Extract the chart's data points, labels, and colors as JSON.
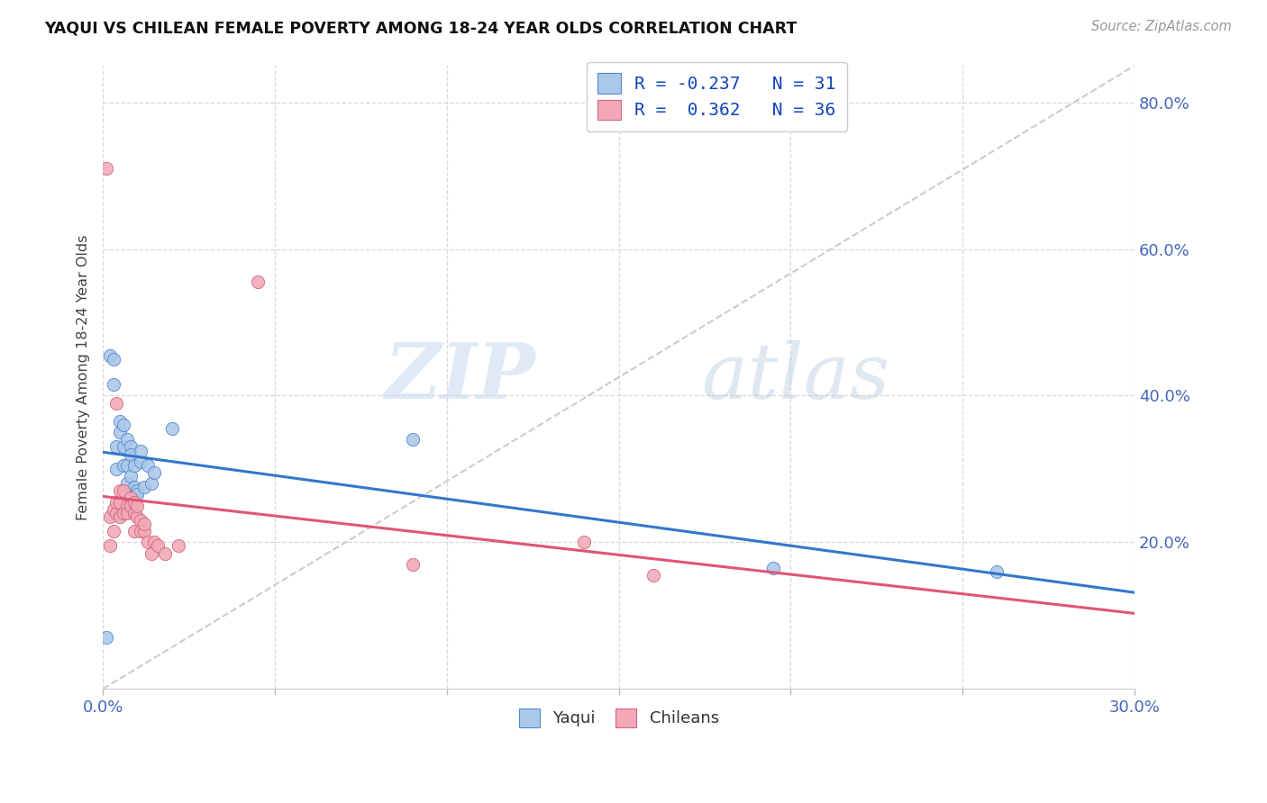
{
  "title": "YAQUI VS CHILEAN FEMALE POVERTY AMONG 18-24 YEAR OLDS CORRELATION CHART",
  "source": "Source: ZipAtlas.com",
  "ylabel": "Female Poverty Among 18-24 Year Olds",
  "xlim": [
    0.0,
    0.3
  ],
  "ylim": [
    0.0,
    0.85
  ],
  "xticks": [
    0.0,
    0.05,
    0.1,
    0.15,
    0.2,
    0.25,
    0.3
  ],
  "yticks_right": [
    0.2,
    0.4,
    0.6,
    0.8
  ],
  "ytick_right_labels": [
    "20.0%",
    "40.0%",
    "60.0%",
    "80.0%"
  ],
  "yaqui_R": -0.237,
  "yaqui_N": 31,
  "chilean_R": 0.362,
  "chilean_N": 36,
  "yaqui_color": "#aac8ea",
  "chilean_color": "#f2a8b8",
  "yaqui_edge_color": "#5588cc",
  "chilean_edge_color": "#d06878",
  "yaqui_line_color": "#3377cc",
  "chilean_line_color": "#e05575",
  "dashed_line_color": "#cccccc",
  "legend_text_color": "#1144bb",
  "axis_tick_color": "#4466bb",
  "background_color": "#ffffff",
  "grid_color": "#d8d8d8",
  "yaqui_x": [
    0.001,
    0.002,
    0.003,
    0.003,
    0.004,
    0.004,
    0.005,
    0.005,
    0.006,
    0.006,
    0.006,
    0.007,
    0.007,
    0.007,
    0.008,
    0.008,
    0.008,
    0.009,
    0.009,
    0.01,
    0.01,
    0.011,
    0.011,
    0.012,
    0.013,
    0.014,
    0.015,
    0.02,
    0.09,
    0.195,
    0.26
  ],
  "yaqui_y": [
    0.07,
    0.455,
    0.45,
    0.415,
    0.33,
    0.3,
    0.35,
    0.365,
    0.33,
    0.305,
    0.36,
    0.34,
    0.305,
    0.28,
    0.33,
    0.32,
    0.29,
    0.305,
    0.275,
    0.27,
    0.265,
    0.31,
    0.325,
    0.275,
    0.305,
    0.28,
    0.295,
    0.355,
    0.34,
    0.165,
    0.16
  ],
  "chilean_x": [
    0.001,
    0.002,
    0.002,
    0.003,
    0.003,
    0.004,
    0.004,
    0.004,
    0.005,
    0.005,
    0.005,
    0.006,
    0.006,
    0.007,
    0.007,
    0.008,
    0.008,
    0.009,
    0.009,
    0.009,
    0.01,
    0.01,
    0.011,
    0.011,
    0.012,
    0.012,
    0.013,
    0.014,
    0.015,
    0.016,
    0.018,
    0.022,
    0.045,
    0.09,
    0.14,
    0.16
  ],
  "chilean_y": [
    0.71,
    0.195,
    0.235,
    0.215,
    0.245,
    0.24,
    0.255,
    0.39,
    0.235,
    0.255,
    0.27,
    0.24,
    0.27,
    0.25,
    0.24,
    0.26,
    0.25,
    0.215,
    0.24,
    0.255,
    0.235,
    0.25,
    0.23,
    0.215,
    0.215,
    0.225,
    0.2,
    0.185,
    0.2,
    0.195,
    0.185,
    0.195,
    0.555,
    0.17,
    0.2,
    0.155
  ],
  "watermark_zip": "ZIP",
  "watermark_atlas": "atlas",
  "marker_size": 105,
  "marker_edge_width": 0.7
}
